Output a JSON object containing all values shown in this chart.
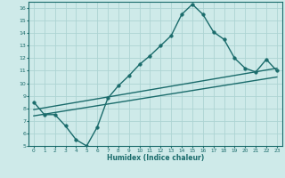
{
  "xlabel": "Humidex (Indice chaleur)",
  "bg_color": "#ceeae9",
  "grid_color": "#add4d3",
  "line_color": "#1a6b6b",
  "xlim": [
    -0.5,
    23.5
  ],
  "ylim": [
    5,
    16.5
  ],
  "xticks": [
    0,
    1,
    2,
    3,
    4,
    5,
    6,
    7,
    8,
    9,
    10,
    11,
    12,
    13,
    14,
    15,
    16,
    17,
    18,
    19,
    20,
    21,
    22,
    23
  ],
  "yticks": [
    5,
    6,
    7,
    8,
    9,
    10,
    11,
    12,
    13,
    14,
    15,
    16
  ],
  "series1_x": [
    0,
    1,
    2,
    3,
    4,
    5,
    6,
    7,
    8,
    9,
    10,
    11,
    12,
    13,
    14,
    15,
    16,
    17,
    18,
    19,
    20,
    21,
    22,
    23
  ],
  "series1_y": [
    8.5,
    7.5,
    7.5,
    6.6,
    5.5,
    5.0,
    6.5,
    8.8,
    9.8,
    10.6,
    11.5,
    12.2,
    13.0,
    13.8,
    15.5,
    16.3,
    15.5,
    14.1,
    13.5,
    12.0,
    11.2,
    10.9,
    11.9,
    11.0
  ],
  "series2_x": [
    0,
    23
  ],
  "series2_y": [
    7.9,
    11.2
  ],
  "series3_x": [
    0,
    23
  ],
  "series3_y": [
    7.4,
    10.5
  ],
  "marker": "o",
  "markersize": 2.5,
  "linewidth": 1.0
}
